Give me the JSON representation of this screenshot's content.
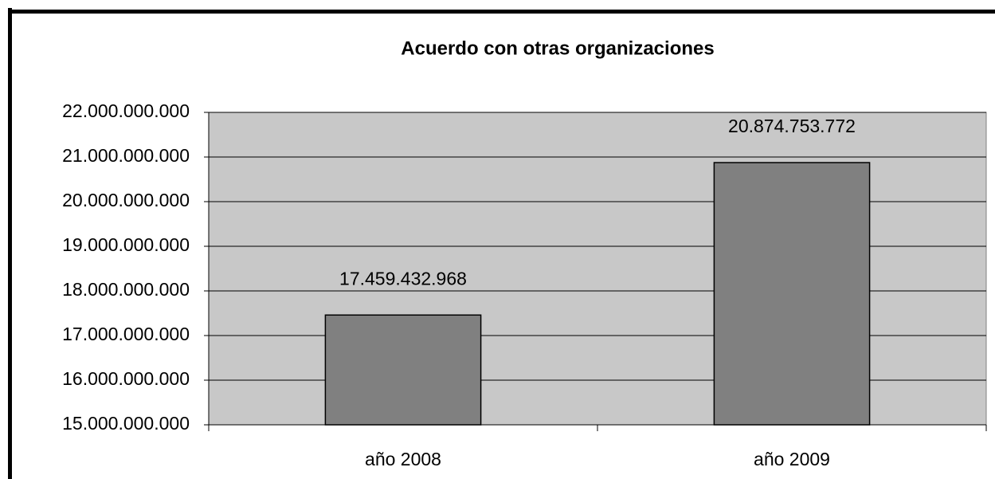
{
  "chart_data": {
    "type": "bar",
    "title": "Acuerdo con otras organizaciones",
    "categories": [
      "año 2008",
      "año 2009"
    ],
    "values": [
      17459432968,
      20874753772
    ],
    "value_labels": [
      "17.459.432.968",
      "20.874.753.772"
    ],
    "color": "#808080",
    "ylim": [
      15000000000,
      22000000000
    ],
    "yticks": [
      {
        "value": 15000000000,
        "label": "15.000.000.000"
      },
      {
        "value": 16000000000,
        "label": "16.000.000.000"
      },
      {
        "value": 17000000000,
        "label": "17.000.000.000"
      },
      {
        "value": 18000000000,
        "label": "18.000.000.000"
      },
      {
        "value": 19000000000,
        "label": "19.000.000.000"
      },
      {
        "value": 20000000000,
        "label": "20.000.000.000"
      },
      {
        "value": 21000000000,
        "label": "21.000.000.000"
      },
      {
        "value": 22000000000,
        "label": "22.000.000.000"
      }
    ],
    "grid": true
  }
}
